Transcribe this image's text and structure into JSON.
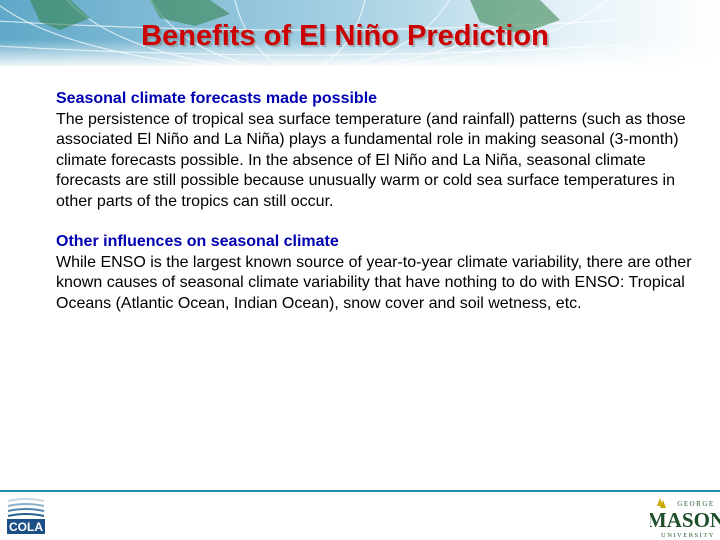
{
  "title": "Benefits of El Niño Prediction",
  "sections": [
    {
      "heading": "Seasonal climate forecasts made possible",
      "body": "The persistence of tropical sea surface temperature (and rainfall) patterns (such as those associated El Niño and La Niña) plays a fundamental role in making seasonal (3-month) climate forecasts possible. In the absence of El Niño and La Niña, seasonal climate forecasts are still possible because unusually warm or cold sea surface temperatures in other parts of the tropics can still occur."
    },
    {
      "heading": "Other influences on seasonal climate",
      "body": "While ENSO is the largest known source of year-to-year climate variability, there are other known causes of seasonal climate variability that have nothing to do with ENSO: Tropical Oceans (Atlantic Ocean, Indian Ocean), snow cover and soil wetness, etc."
    }
  ],
  "footer": {
    "left_logo": "COLA",
    "right_logo_top": "GEORGE",
    "right_logo_main": "MASON",
    "right_logo_bottom": "UNIVERSITY"
  },
  "colors": {
    "title": "#cc0000",
    "heading": "#0000b3",
    "rule": "#1a8fb0"
  }
}
